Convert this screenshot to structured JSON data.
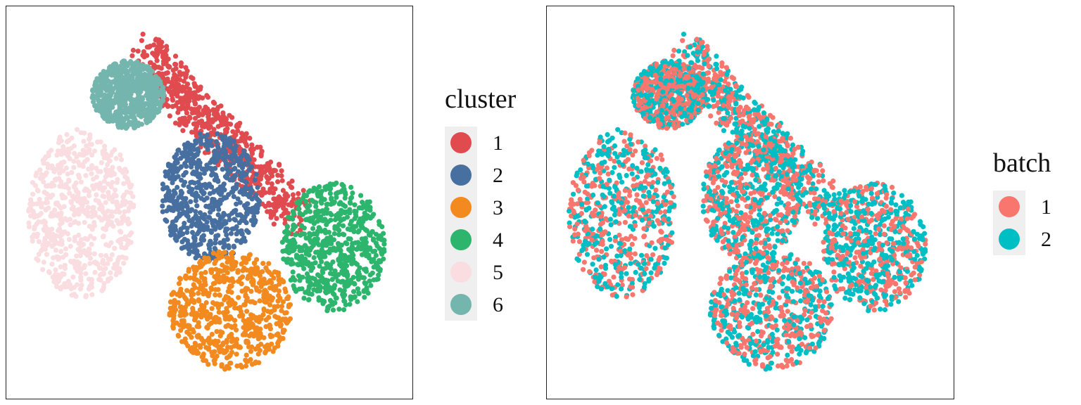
{
  "chart_data": [
    {
      "type": "scatter",
      "title": "",
      "xlabel": "",
      "ylabel": "",
      "axes": "none",
      "grid": false,
      "legend_position": "right",
      "legend": {
        "title": "cluster",
        "entries": [
          {
            "label": "1",
            "color": "#E04B4F"
          },
          {
            "label": "2",
            "color": "#476FA0"
          },
          {
            "label": "3",
            "color": "#F28A1F"
          },
          {
            "label": "4",
            "color": "#2DB56D"
          },
          {
            "label": "5",
            "color": "#F9DDE0"
          },
          {
            "label": "6",
            "color": "#74B5AE"
          }
        ]
      },
      "clusters": [
        {
          "label": "1",
          "color": "#E04B4F",
          "segments": [
            [
              -0.92,
              0.88,
              -0.55,
              0.62,
              0.5
            ],
            [
              -0.55,
              0.62,
              -0.02,
              0.3,
              0.5
            ],
            [
              -0.02,
              0.3,
              0.52,
              -0.05,
              0.5
            ]
          ]
        },
        {
          "label": "2",
          "color": "#476FA0",
          "center": [
            -0.3,
            0.05
          ],
          "radius": [
            0.48,
            0.38
          ]
        },
        {
          "label": "3",
          "color": "#F28A1F",
          "center": [
            -0.1,
            -0.62
          ],
          "radius": [
            0.6,
            0.35
          ]
        },
        {
          "label": "4",
          "color": "#2DB56D",
          "center": [
            0.9,
            -0.25
          ],
          "radius": [
            0.5,
            0.38
          ]
        },
        {
          "label": "5",
          "color": "#F9DDE0",
          "center": [
            -1.55,
            -0.05
          ],
          "radius": [
            0.52,
            0.5
          ]
        },
        {
          "label": "6",
          "color": "#74B5AE",
          "center": [
            -1.1,
            0.65
          ],
          "radius": [
            0.35,
            0.2
          ]
        }
      ]
    },
    {
      "type": "scatter",
      "title": "",
      "xlabel": "",
      "ylabel": "",
      "axes": "none",
      "grid": false,
      "legend_position": "right",
      "legend": {
        "title": "batch",
        "entries": [
          {
            "label": "1",
            "color": "#F8766D"
          },
          {
            "label": "2",
            "color": "#00BFC4"
          }
        ]
      },
      "note_same_embedding_as": 0
    }
  ],
  "legends": {
    "left": {
      "title": "cluster",
      "items": [
        "1",
        "2",
        "3",
        "4",
        "5",
        "6"
      ]
    },
    "right": {
      "title": "batch",
      "items": [
        "1",
        "2"
      ]
    }
  }
}
